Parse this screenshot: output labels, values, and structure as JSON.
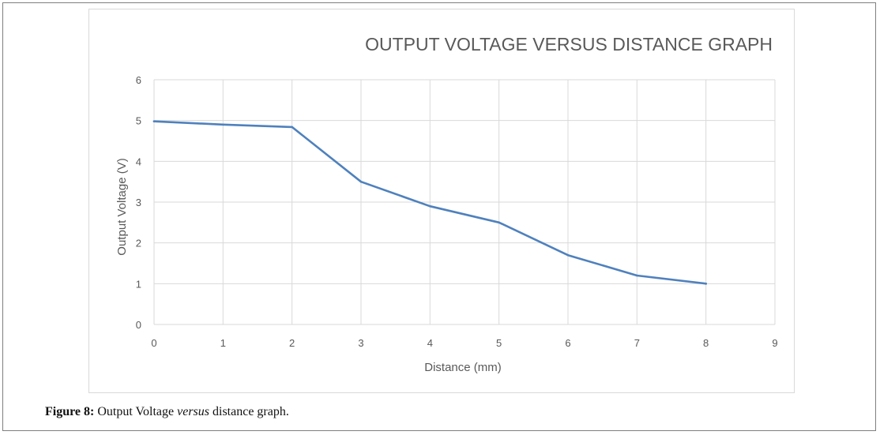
{
  "chart_data": {
    "type": "line",
    "title": "OUTPUT VOLTAGE VERSUS DISTANCE GRAPH",
    "xlabel": "Distance (mm)",
    "ylabel": "Output Voltage (V)",
    "xlim": [
      0,
      9
    ],
    "ylim": [
      0,
      6
    ],
    "xticks": [
      "0",
      "1",
      "2",
      "3",
      "4",
      "5",
      "6",
      "7",
      "8",
      "9"
    ],
    "yticks": [
      "0",
      "1",
      "2",
      "3",
      "4",
      "5",
      "6"
    ],
    "grid": true,
    "series": [
      {
        "color": "#4f81bd",
        "x": [
          0,
          1,
          2,
          3,
          4,
          5,
          6,
          7,
          8
        ],
        "y": [
          4.98,
          4.9,
          4.84,
          3.5,
          2.9,
          2.5,
          1.7,
          1.2,
          1.0
        ]
      }
    ]
  },
  "caption": {
    "label": "Figure 8:",
    "text_before": "Output Voltage",
    "text_italic": "versus",
    "text_after": "distance graph."
  }
}
